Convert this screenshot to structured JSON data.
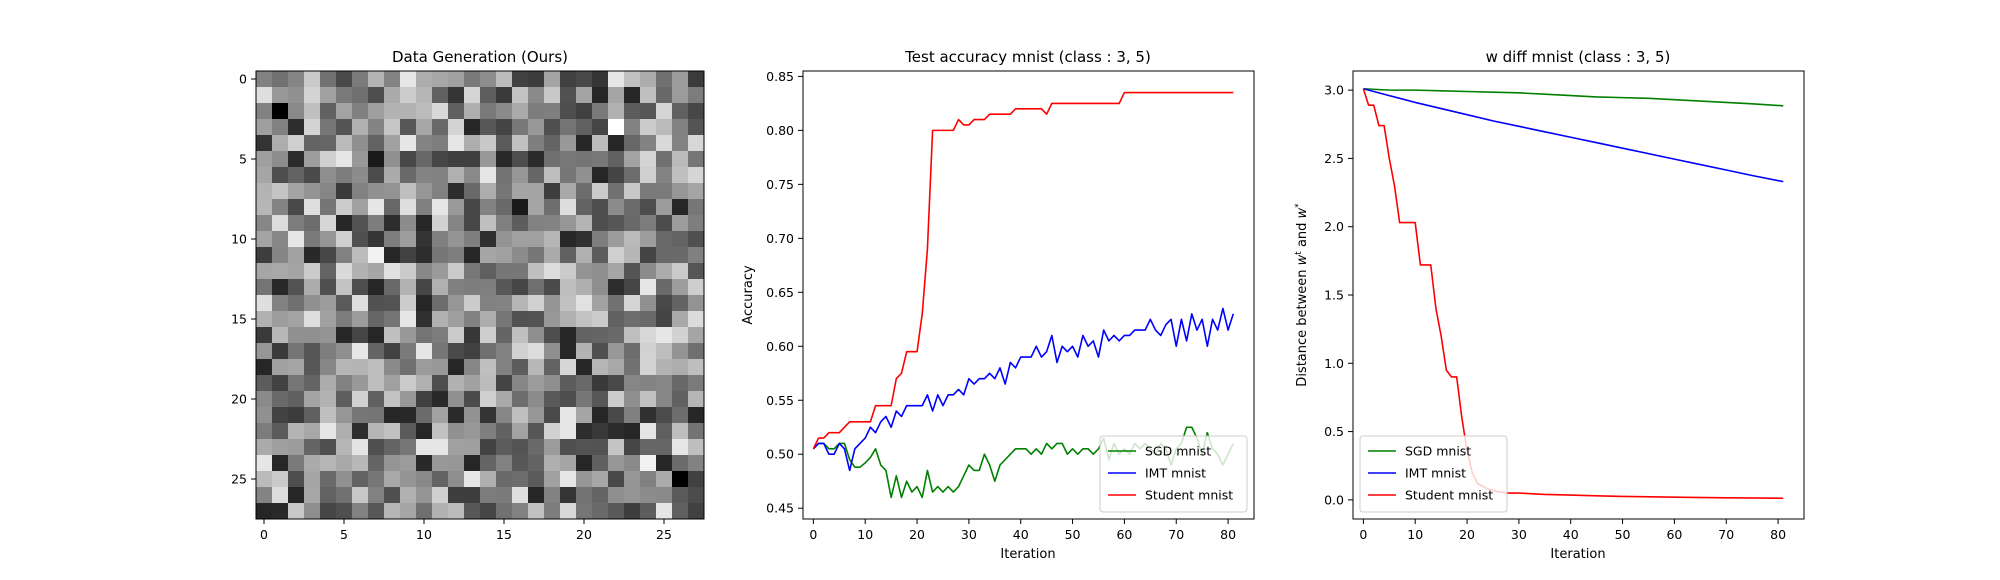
{
  "chart_data": [
    {
      "type": "heatmap",
      "title": "Data Generation (Ours)",
      "xlabel": "",
      "ylabel": "",
      "rows": 28,
      "cols": 28,
      "xticks": [
        0,
        5,
        10,
        15,
        20,
        25
      ],
      "yticks": [
        0,
        5,
        10,
        15,
        20,
        25
      ],
      "colormap": "gray",
      "seed": 17,
      "highlight_cells": [
        {
          "row": 2,
          "col": 1,
          "value": 0.0
        },
        {
          "row": 3,
          "col": 22,
          "value": 1.0
        },
        {
          "row": 25,
          "col": 26,
          "value": 0.0
        },
        {
          "row": 24,
          "col": 24,
          "value": 0.95
        },
        {
          "row": 11,
          "col": 7,
          "value": 0.95
        },
        {
          "row": 5,
          "col": 7,
          "value": 0.1
        },
        {
          "row": 8,
          "col": 16,
          "value": 0.1
        },
        {
          "row": 22,
          "col": 23,
          "value": 0.15
        }
      ]
    },
    {
      "type": "line",
      "title": "Test accuracy mnist (class : 3, 5)",
      "xlabel": "Iteration",
      "ylabel": "Accuracy",
      "xlim": [
        -2,
        85
      ],
      "ylim": [
        0.44,
        0.855
      ],
      "xticks": [
        0,
        10,
        20,
        30,
        40,
        50,
        60,
        70,
        80
      ],
      "yticks": [
        0.45,
        0.5,
        0.55,
        0.6,
        0.65,
        0.7,
        0.75,
        0.8,
        0.85
      ],
      "yticklabels": [
        "0.45",
        "0.50",
        "0.55",
        "0.60",
        "0.65",
        "0.70",
        "0.75",
        "0.80",
        "0.85"
      ],
      "legend_position": "lower-right",
      "series": [
        {
          "name": "SGD mnist",
          "color": "#008000",
          "x": [
            0,
            1,
            2,
            3,
            4,
            5,
            6,
            7,
            8,
            9,
            10,
            11,
            12,
            13,
            14,
            15,
            16,
            17,
            18,
            19,
            20,
            21,
            22,
            23,
            24,
            25,
            26,
            27,
            28,
            29,
            30,
            31,
            32,
            33,
            34,
            35,
            36,
            37,
            38,
            39,
            40,
            41,
            42,
            43,
            44,
            45,
            46,
            47,
            48,
            49,
            50,
            51,
            52,
            53,
            54,
            55,
            56,
            57,
            58,
            59,
            60,
            61,
            62,
            63,
            64,
            65,
            66,
            67,
            68,
            69,
            70,
            71,
            72,
            73,
            74,
            75,
            76,
            77,
            78,
            79,
            80,
            81
          ],
          "y": [
            0.505,
            0.51,
            0.51,
            0.505,
            0.505,
            0.51,
            0.51,
            0.495,
            0.488,
            0.488,
            0.492,
            0.497,
            0.505,
            0.49,
            0.485,
            0.46,
            0.48,
            0.46,
            0.475,
            0.465,
            0.47,
            0.46,
            0.485,
            0.465,
            0.47,
            0.465,
            0.47,
            0.465,
            0.47,
            0.48,
            0.49,
            0.485,
            0.485,
            0.5,
            0.49,
            0.475,
            0.49,
            0.495,
            0.5,
            0.505,
            0.505,
            0.505,
            0.5,
            0.505,
            0.5,
            0.51,
            0.505,
            0.51,
            0.51,
            0.5,
            0.505,
            0.5,
            0.505,
            0.505,
            0.5,
            0.505,
            0.515,
            0.495,
            0.51,
            0.5,
            0.505,
            0.5,
            0.51,
            0.505,
            0.51,
            0.505,
            0.5,
            0.51,
            0.505,
            0.49,
            0.505,
            0.51,
            0.525,
            0.525,
            0.515,
            0.5,
            0.52,
            0.505,
            0.5,
            0.49,
            0.5,
            0.51
          ]
        },
        {
          "name": "IMT mnist",
          "color": "#0000ff",
          "x": [
            0,
            1,
            2,
            3,
            4,
            5,
            6,
            7,
            8,
            9,
            10,
            11,
            12,
            13,
            14,
            15,
            16,
            17,
            18,
            19,
            20,
            21,
            22,
            23,
            24,
            25,
            26,
            27,
            28,
            29,
            30,
            31,
            32,
            33,
            34,
            35,
            36,
            37,
            38,
            39,
            40,
            41,
            42,
            43,
            44,
            45,
            46,
            47,
            48,
            49,
            50,
            51,
            52,
            53,
            54,
            55,
            56,
            57,
            58,
            59,
            60,
            61,
            62,
            63,
            64,
            65,
            66,
            67,
            68,
            69,
            70,
            71,
            72,
            73,
            74,
            75,
            76,
            77,
            78,
            79,
            80,
            81
          ],
          "y": [
            0.505,
            0.51,
            0.51,
            0.5,
            0.5,
            0.51,
            0.505,
            0.485,
            0.505,
            0.51,
            0.515,
            0.525,
            0.52,
            0.53,
            0.535,
            0.525,
            0.54,
            0.535,
            0.545,
            0.545,
            0.545,
            0.545,
            0.555,
            0.54,
            0.555,
            0.545,
            0.555,
            0.555,
            0.56,
            0.555,
            0.57,
            0.565,
            0.57,
            0.57,
            0.575,
            0.57,
            0.58,
            0.565,
            0.585,
            0.58,
            0.59,
            0.59,
            0.59,
            0.6,
            0.59,
            0.595,
            0.61,
            0.585,
            0.6,
            0.595,
            0.6,
            0.59,
            0.61,
            0.6,
            0.605,
            0.59,
            0.615,
            0.605,
            0.61,
            0.605,
            0.61,
            0.61,
            0.615,
            0.615,
            0.615,
            0.625,
            0.615,
            0.61,
            0.62,
            0.625,
            0.6,
            0.625,
            0.605,
            0.63,
            0.615,
            0.625,
            0.6,
            0.625,
            0.615,
            0.635,
            0.615,
            0.63
          ]
        },
        {
          "name": "Student mnist",
          "color": "#ff0000",
          "x": [
            0,
            1,
            2,
            3,
            4,
            5,
            6,
            7,
            8,
            9,
            10,
            11,
            12,
            13,
            14,
            15,
            16,
            17,
            18,
            19,
            20,
            21,
            22,
            23,
            24,
            25,
            26,
            27,
            28,
            29,
            30,
            31,
            32,
            33,
            34,
            35,
            36,
            37,
            38,
            39,
            40,
            41,
            42,
            43,
            44,
            45,
            46,
            47,
            48,
            49,
            50,
            51,
            52,
            53,
            54,
            55,
            56,
            57,
            58,
            59,
            60,
            61,
            62,
            63,
            64,
            65,
            66,
            67,
            68,
            69,
            70,
            71,
            72,
            73,
            74,
            75,
            76,
            77,
            78,
            79,
            80,
            81
          ],
          "y": [
            0.505,
            0.515,
            0.515,
            0.52,
            0.52,
            0.52,
            0.525,
            0.53,
            0.53,
            0.53,
            0.53,
            0.53,
            0.545,
            0.545,
            0.545,
            0.545,
            0.57,
            0.575,
            0.595,
            0.595,
            0.595,
            0.63,
            0.69,
            0.8,
            0.8,
            0.8,
            0.8,
            0.8,
            0.81,
            0.805,
            0.805,
            0.81,
            0.81,
            0.81,
            0.815,
            0.815,
            0.815,
            0.815,
            0.815,
            0.82,
            0.82,
            0.82,
            0.82,
            0.82,
            0.82,
            0.815,
            0.825,
            0.825,
            0.825,
            0.825,
            0.825,
            0.825,
            0.825,
            0.825,
            0.825,
            0.825,
            0.825,
            0.825,
            0.825,
            0.825,
            0.835,
            0.835,
            0.835,
            0.835,
            0.835,
            0.835,
            0.835,
            0.835,
            0.835,
            0.835,
            0.835,
            0.835,
            0.835,
            0.835,
            0.835,
            0.835,
            0.835,
            0.835,
            0.835,
            0.835,
            0.835,
            0.835
          ]
        }
      ]
    },
    {
      "type": "line",
      "title": "w diff mnist (class : 3, 5)",
      "xlabel": "Iteration",
      "ylabel": "Distance between w^t and w^*",
      "ylabel_parts": {
        "prefix": "Distance between ",
        "var1": "w",
        "sup1": "t",
        "mid": " and ",
        "var2": "w",
        "sup2": "*"
      },
      "xlim": [
        -2,
        85
      ],
      "ylim": [
        -0.14,
        3.14
      ],
      "xticks": [
        0,
        10,
        20,
        30,
        40,
        50,
        60,
        70,
        80
      ],
      "yticks": [
        0.0,
        0.5,
        1.0,
        1.5,
        2.0,
        2.5,
        3.0
      ],
      "yticklabels": [
        "0.0",
        "0.5",
        "1.0",
        "1.5",
        "2.0",
        "2.5",
        "3.0"
      ],
      "legend_position": "lower-left",
      "series": [
        {
          "name": "SGD mnist",
          "color": "#008000",
          "x": [
            0,
            5,
            10,
            15,
            20,
            25,
            30,
            35,
            40,
            45,
            50,
            55,
            60,
            65,
            70,
            75,
            81
          ],
          "y": [
            3.01,
            3.0,
            3.0,
            2.995,
            2.99,
            2.985,
            2.98,
            2.97,
            2.96,
            2.95,
            2.945,
            2.94,
            2.93,
            2.92,
            2.91,
            2.9,
            2.885
          ]
        },
        {
          "name": "IMT mnist",
          "color": "#0000ff",
          "x": [
            0,
            5,
            10,
            15,
            20,
            25,
            30,
            35,
            40,
            45,
            50,
            55,
            60,
            65,
            70,
            75,
            81
          ],
          "y": [
            3.01,
            2.96,
            2.91,
            2.865,
            2.82,
            2.775,
            2.735,
            2.695,
            2.655,
            2.615,
            2.575,
            2.535,
            2.495,
            2.455,
            2.415,
            2.375,
            2.33
          ]
        },
        {
          "name": "Student mnist",
          "color": "#ff0000",
          "x": [
            0,
            1,
            2,
            3,
            4,
            5,
            6,
            7,
            8,
            9,
            10,
            11,
            12,
            13,
            14,
            15,
            16,
            17,
            18,
            19,
            20,
            21,
            22,
            23,
            24,
            25,
            26,
            27,
            28,
            30,
            35,
            40,
            45,
            50,
            60,
            70,
            81
          ],
          "y": [
            3.01,
            2.89,
            2.89,
            2.74,
            2.74,
            2.5,
            2.3,
            2.03,
            2.03,
            2.03,
            2.03,
            1.72,
            1.72,
            1.72,
            1.4,
            1.2,
            0.95,
            0.9,
            0.9,
            0.6,
            0.36,
            0.2,
            0.12,
            0.1,
            0.08,
            0.07,
            0.06,
            0.055,
            0.05,
            0.05,
            0.04,
            0.035,
            0.03,
            0.025,
            0.02,
            0.015,
            0.012
          ]
        }
      ]
    }
  ]
}
